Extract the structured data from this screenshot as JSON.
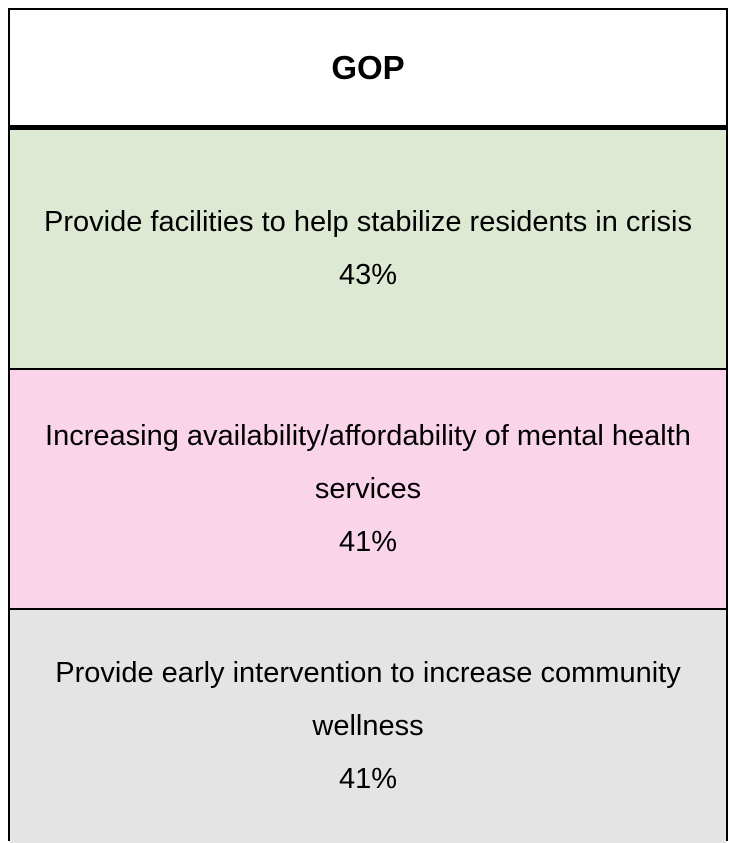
{
  "table": {
    "header": "GOP",
    "rows": [
      {
        "label": "Provide facilities to help stabilize residents in crisis",
        "value": "43%"
      },
      {
        "label": "Increasing availability/affordability of mental health services",
        "value": "41%"
      },
      {
        "label": "Provide early intervention to increase community wellness",
        "value": "41%"
      }
    ]
  }
}
